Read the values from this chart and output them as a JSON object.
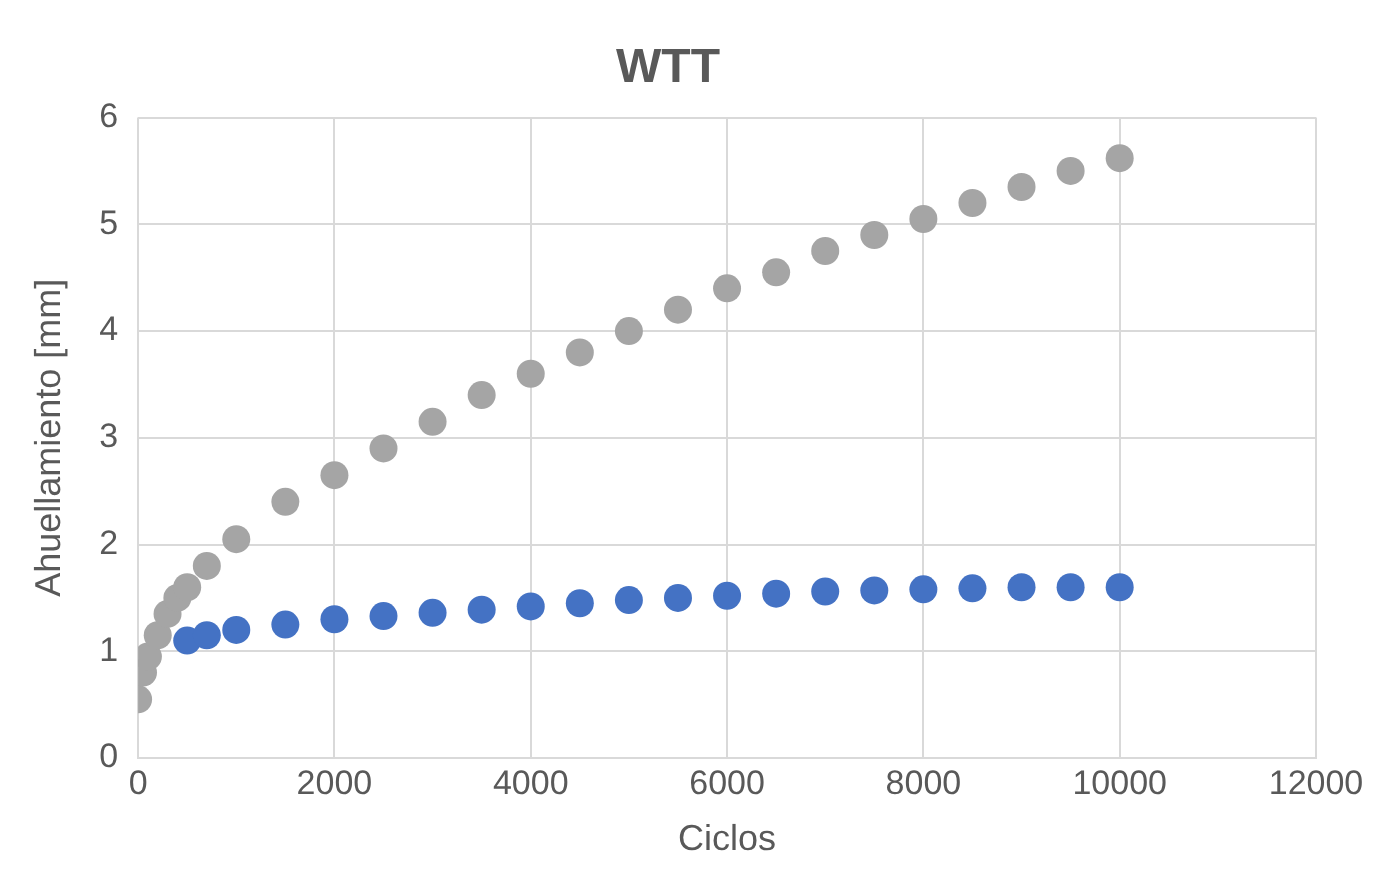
{
  "chart_data": {
    "type": "scatter",
    "title": "WTT",
    "xlabel": "Ciclos",
    "ylabel": "Ahuellamiento [mm]",
    "xlim": [
      0,
      12000
    ],
    "xticks": [
      0,
      2000,
      4000,
      6000,
      8000,
      10000,
      12000
    ],
    "ylim": [
      0,
      6
    ],
    "yticks": [
      0,
      1,
      2,
      3,
      4,
      5,
      6
    ],
    "grid": true,
    "legend": false,
    "marker": "circle",
    "series": [
      {
        "color": "#a5a5a5",
        "x": [
          0,
          50,
          100,
          200,
          300,
          400,
          500,
          700,
          1000,
          1500,
          2000,
          2500,
          3000,
          3500,
          4000,
          4500,
          5000,
          5500,
          6000,
          6500,
          7000,
          7500,
          8000,
          8500,
          9000,
          9500,
          10000
        ],
        "values": [
          0.55,
          0.8,
          0.95,
          1.15,
          1.35,
          1.5,
          1.6,
          1.8,
          2.05,
          2.4,
          2.65,
          2.9,
          3.15,
          3.4,
          3.6,
          3.8,
          4.0,
          4.2,
          4.4,
          4.55,
          4.75,
          4.9,
          5.05,
          5.2,
          5.35,
          5.5,
          5.62
        ]
      },
      {
        "color": "#4472c4",
        "x": [
          500,
          700,
          1000,
          1500,
          2000,
          2500,
          3000,
          3500,
          4000,
          4500,
          5000,
          5500,
          6000,
          6500,
          7000,
          7500,
          8000,
          8500,
          9000,
          9500,
          10000
        ],
        "values": [
          1.1,
          1.15,
          1.2,
          1.25,
          1.3,
          1.33,
          1.36,
          1.39,
          1.42,
          1.45,
          1.48,
          1.5,
          1.52,
          1.54,
          1.56,
          1.57,
          1.58,
          1.59,
          1.6,
          1.6,
          1.6
        ]
      }
    ]
  }
}
